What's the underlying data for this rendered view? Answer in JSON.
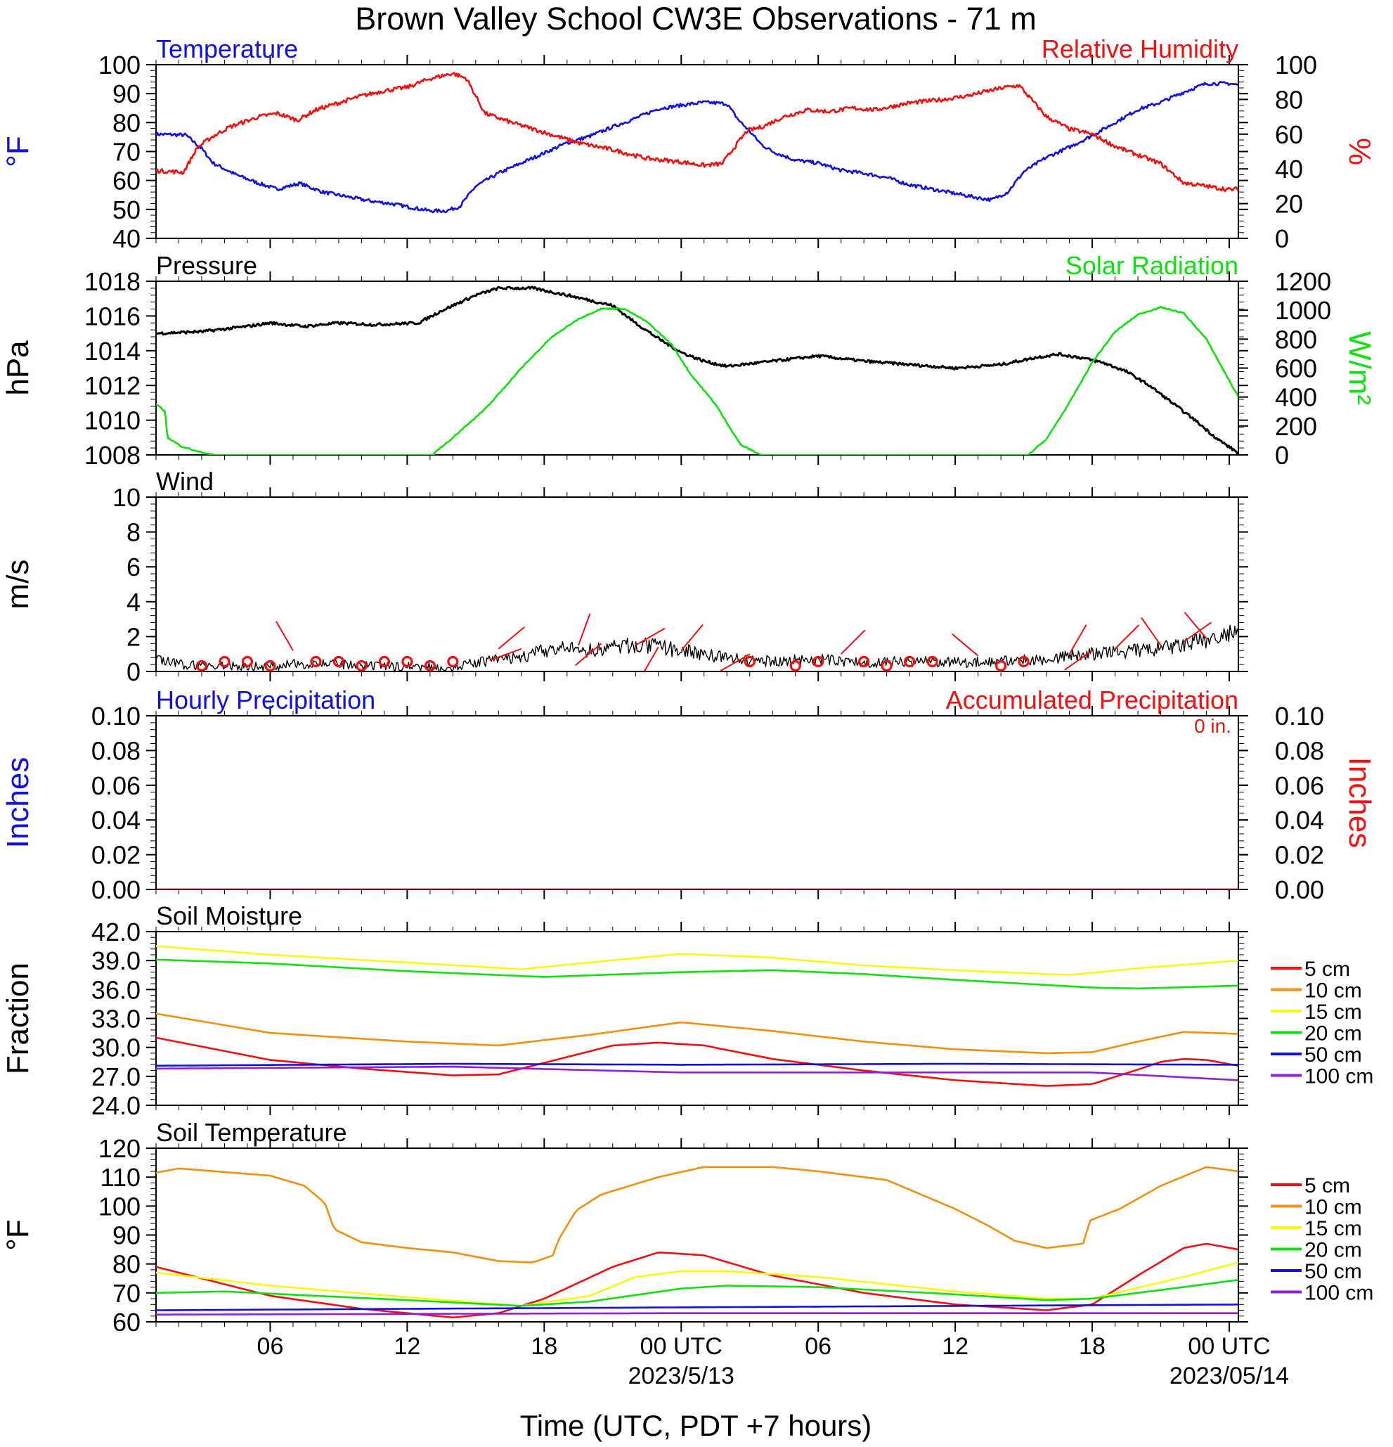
{
  "title": "Brown Valley School CW3E Observations - 71 m",
  "time_axis": {
    "tick_labels": [
      "06",
      "12",
      "18",
      "00 UTC",
      "06",
      "12",
      "18",
      "00 UTC"
    ],
    "tick_hours": [
      6,
      12,
      18,
      24,
      30,
      36,
      42,
      48
    ],
    "dates": [
      {
        "text": "2023/5/13",
        "hour": 24
      },
      {
        "text": "2023/05/14",
        "hour": 48
      }
    ],
    "range_hours": [
      1,
      48.4
    ],
    "label": "Time (UTC, PDT +7 hours)"
  },
  "colors": {
    "temperature": "#1010e0",
    "humidity": "#f01010",
    "pressure": "#000000",
    "solar": "#10e010",
    "wind": "#000000",
    "barb": "#f01010",
    "hourly_precip": "#1010e0",
    "accum_precip": "#f01010"
  },
  "chart_data": [
    {
      "type": "line",
      "title_left": "Temperature",
      "title_right": "Relative Humidity",
      "ylabel_left": "°F",
      "ylabel_right": "%",
      "ylim_left": [
        40,
        100
      ],
      "ylim_right": [
        0,
        100
      ],
      "yticks_left": [
        "40",
        "50",
        "60",
        "70",
        "80",
        "90",
        "100"
      ],
      "yticks_right": [
        "0",
        "20",
        "40",
        "60",
        "80",
        "100"
      ],
      "series": [
        {
          "name": "Temperature",
          "axis": "left",
          "x": [
            1,
            2.3,
            3,
            3.5,
            4.5,
            5.5,
            6.3,
            7.3,
            8.3,
            9.3,
            10.3,
            11.3,
            12.3,
            13,
            13.7,
            14.3,
            15,
            16,
            17,
            18,
            19,
            20,
            21,
            22,
            23,
            24,
            25,
            26,
            26.5,
            27,
            27.5,
            28,
            29,
            30,
            31,
            32,
            33,
            34,
            35,
            36,
            37,
            37.6,
            38.3,
            39,
            40,
            41,
            42,
            43,
            44,
            45,
            46,
            47,
            48,
            48.4
          ],
          "y": [
            76,
            75.7,
            71,
            66,
            62,
            59,
            57,
            59,
            56,
            54.5,
            53,
            52,
            50.5,
            49.5,
            49.5,
            51,
            58,
            62.5,
            66,
            69.5,
            73,
            75.3,
            78.5,
            81.5,
            84.8,
            86,
            87,
            86.5,
            81,
            77,
            72.5,
            70,
            67,
            66,
            63.5,
            62.5,
            61,
            58.5,
            57,
            55.5,
            54,
            53.3,
            56,
            63,
            68,
            71.5,
            75.5,
            80,
            84.5,
            87,
            90.5,
            93.5,
            93.5,
            93
          ]
        },
        {
          "name": "Relative Humidity",
          "axis": "right",
          "x": [
            1,
            2.2,
            2.8,
            3.4,
            4.2,
            5.5,
            6.3,
            7.2,
            8,
            9,
            10,
            11,
            12,
            13,
            14,
            14.6,
            15.4,
            16.5,
            17.5,
            18.5,
            19.5,
            21,
            22.5,
            24,
            25,
            25.8,
            26.3,
            26.9,
            27.5,
            28.5,
            29.5,
            30.5,
            31.5,
            32.5,
            34,
            35.5,
            36.5,
            37.5,
            38.2,
            38.8,
            40,
            41,
            42,
            43,
            44,
            45,
            46,
            47,
            48,
            48.4
          ],
          "y": [
            39,
            38,
            52,
            58,
            64,
            70,
            72,
            68,
            74,
            78,
            82,
            85,
            87,
            92,
            95,
            92,
            72,
            67,
            63,
            59,
            55,
            51,
            46,
            44,
            42,
            43,
            52,
            62,
            64,
            70,
            74,
            73,
            75,
            74,
            78,
            80,
            82,
            85,
            87,
            88,
            70,
            63,
            60,
            53,
            48,
            43,
            32,
            30,
            28,
            28.5
          ]
        }
      ]
    },
    {
      "type": "line",
      "title_left": "Pressure",
      "title_right": "Solar Radiation",
      "ylabel_left": "hPa",
      "ylabel_right": "W/m²",
      "ylim_left": [
        1008,
        1018
      ],
      "ylim_right": [
        0,
        1200
      ],
      "yticks_left": [
        "1008",
        "1010",
        "1012",
        "1014",
        "1016",
        "1018"
      ],
      "yticks_right": [
        "0",
        "200",
        "400",
        "600",
        "800",
        "1000",
        "1200"
      ],
      "series": [
        {
          "name": "Pressure",
          "axis": "left",
          "x": [
            1,
            3,
            5,
            6,
            7.5,
            9,
            10.5,
            12.5,
            13.5,
            15,
            16,
            17.5,
            19,
            21,
            22,
            23,
            24,
            25,
            26,
            28,
            30,
            32,
            34,
            36,
            38,
            39.5,
            40.5,
            41.5,
            42.5,
            43.5,
            44.5,
            45.5,
            46.5,
            47.5,
            48.4
          ],
          "y": [
            1015,
            1015.1,
            1015.4,
            1015.6,
            1015.4,
            1015.6,
            1015.5,
            1015.6,
            1016.3,
            1017.2,
            1017.6,
            1017.6,
            1017.2,
            1016.6,
            1015.6,
            1014.7,
            1013.9,
            1013.4,
            1013.1,
            1013.4,
            1013.7,
            1013.4,
            1013.2,
            1013.0,
            1013.2,
            1013.6,
            1013.8,
            1013.6,
            1013.3,
            1012.8,
            1012.0,
            1011.0,
            1010.0,
            1008.9,
            1008.1
          ]
        },
        {
          "name": "Solar Radiation",
          "axis": "right",
          "x": [
            1,
            1.4,
            1.5,
            2.1,
            2.9,
            3.6,
            13.1,
            14,
            15.5,
            17,
            18.3,
            19.5,
            20.5,
            21.5,
            22.5,
            23.6,
            24.4,
            25.5,
            26.6,
            27.5,
            30,
            34,
            38,
            39.2,
            40,
            41,
            42,
            43,
            44,
            45,
            46,
            47,
            48.4
          ],
          "y": [
            350,
            300,
            120,
            60,
            20,
            0,
            0,
            120,
            330,
            600,
            810,
            940,
            1010,
            1010,
            920,
            760,
            560,
            350,
            70,
            0,
            0,
            0,
            0,
            0,
            110,
            360,
            640,
            850,
            970,
            1020,
            980,
            800,
            400
          ]
        }
      ]
    },
    {
      "type": "line",
      "title_left": "Wind",
      "ylabel_left": "m/s",
      "ylim_left": [
        0,
        10
      ],
      "yticks_left": [
        "0",
        "2",
        "4",
        "6",
        "8",
        "10"
      ],
      "series": [
        {
          "name": "Wind",
          "axis": "left",
          "x": [
            1,
            2,
            4,
            6,
            8,
            10,
            12,
            14,
            15,
            16,
            17,
            18,
            19,
            20,
            21,
            22,
            23,
            24,
            25,
            26,
            27,
            28,
            30,
            32,
            34,
            36,
            38,
            40,
            41,
            42,
            43,
            44,
            45,
            46,
            47,
            48,
            48.4
          ],
          "y": [
            0.7,
            0.4,
            0.3,
            0.3,
            0.5,
            0.3,
            0.3,
            0.2,
            0.5,
            0.7,
            0.8,
            1.2,
            1.3,
            1.2,
            1.4,
            1.5,
            1.4,
            1.2,
            1.0,
            0.8,
            0.6,
            0.6,
            0.7,
            0.5,
            0.6,
            0.5,
            0.6,
            0.7,
            0.9,
            1.0,
            1.1,
            1.2,
            1.3,
            1.5,
            1.8,
            2.1,
            2.2
          ]
        }
      ],
      "calm_markers_hours": [
        3,
        4,
        5,
        6,
        8,
        9,
        10,
        11,
        12,
        13,
        14,
        27,
        29,
        30,
        32,
        33,
        34,
        35,
        38,
        39
      ],
      "barbs": [
        {
          "hour": 7,
          "speed": 1.2
        },
        {
          "hour": 16,
          "speed": 1.3
        },
        {
          "hour": 17,
          "speed": 1.3
        },
        {
          "hour": 19.5,
          "speed": 1.5
        },
        {
          "hour": 20.5,
          "speed": 1.6
        },
        {
          "hour": 22,
          "speed": 1.5
        },
        {
          "hour": 23,
          "speed": 1.4
        },
        {
          "hour": 24,
          "speed": 1.2
        },
        {
          "hour": 27,
          "speed": 1.0
        },
        {
          "hour": 31,
          "speed": 1.0
        },
        {
          "hour": 37,
          "speed": 0.9
        },
        {
          "hour": 41,
          "speed": 1.0
        },
        {
          "hour": 42,
          "speed": 1.2
        },
        {
          "hour": 43,
          "speed": 1.3
        },
        {
          "hour": 45,
          "speed": 1.5
        },
        {
          "hour": 46,
          "speed": 1.7
        },
        {
          "hour": 47,
          "speed": 1.9
        }
      ]
    },
    {
      "type": "line",
      "title_left": "Hourly Precipitation",
      "title_right": "Accumulated Precipitation",
      "annotation": "0 in.",
      "ylabel_left": "Inches",
      "ylabel_right": "Inches",
      "ylim_left": [
        0,
        0.1
      ],
      "ylim_right": [
        0,
        0.1
      ],
      "yticks_left": [
        "0.00",
        "0.02",
        "0.04",
        "0.06",
        "0.08",
        "0.10"
      ],
      "yticks_right": [
        "0.00",
        "0.02",
        "0.04",
        "0.06",
        "0.08",
        "0.10"
      ],
      "series": [
        {
          "name": "Hourly Precipitation",
          "axis": "left",
          "x": [
            1,
            48.4
          ],
          "y": [
            0,
            0
          ]
        },
        {
          "name": "Accumulated Precipitation",
          "axis": "right",
          "x": [
            1,
            48.4
          ],
          "y": [
            0,
            0
          ]
        }
      ]
    },
    {
      "type": "line",
      "title_left": "Soil Moisture",
      "ylabel_left": "Fraction",
      "ylim_left": [
        24,
        42
      ],
      "yticks_left": [
        "24.0",
        "27.0",
        "30.0",
        "33.0",
        "36.0",
        "39.0",
        "42.0"
      ],
      "legend_position": "right",
      "series": [
        {
          "name": "5 cm",
          "color": "#f01010",
          "x": [
            1,
            6,
            10,
            14,
            16,
            18,
            21,
            23,
            25,
            28,
            32,
            36,
            40,
            42,
            44,
            45,
            46,
            47,
            48.4
          ],
          "y": [
            31,
            28.7,
            27.8,
            27.1,
            27.2,
            28.4,
            30.2,
            30.5,
            30.2,
            28.8,
            27.6,
            26.6,
            26.0,
            26.2,
            27.7,
            28.5,
            28.8,
            28.7,
            28.1
          ]
        },
        {
          "name": "10 cm",
          "color": "#f09010",
          "x": [
            1,
            6,
            12,
            16,
            20,
            24,
            28,
            32,
            36,
            40,
            42,
            44,
            46,
            48.4
          ],
          "y": [
            33.5,
            31.5,
            30.6,
            30.2,
            31.3,
            32.6,
            31.7,
            30.6,
            29.8,
            29.4,
            29.5,
            30.6,
            31.6,
            31.4
          ]
        },
        {
          "name": "15 cm",
          "color": "#f8f810",
          "x": [
            1,
            6,
            12,
            17,
            20,
            24,
            28,
            32,
            36,
            41,
            44,
            48.4
          ],
          "y": [
            40.5,
            39.6,
            38.8,
            38.1,
            38.8,
            39.7,
            39.3,
            38.5,
            38.0,
            37.5,
            38.2,
            39.0
          ]
        },
        {
          "name": "20 cm",
          "color": "#10e010",
          "x": [
            1,
            6,
            12,
            18,
            24,
            28,
            32,
            36,
            42,
            44,
            48.4
          ],
          "y": [
            39.1,
            38.7,
            37.9,
            37.3,
            37.8,
            38.0,
            37.6,
            37.0,
            36.2,
            36.1,
            36.4
          ]
        },
        {
          "name": "50 cm",
          "color": "#1010e0",
          "x": [
            1,
            14,
            24,
            36,
            48.4
          ],
          "y": [
            28.1,
            28.3,
            28.2,
            28.3,
            28.2
          ]
        },
        {
          "name": "100 cm",
          "color": "#9020d0",
          "x": [
            1,
            14,
            24,
            36,
            42,
            48.4
          ],
          "y": [
            27.8,
            28.0,
            27.4,
            27.4,
            27.4,
            26.6
          ]
        }
      ]
    },
    {
      "type": "line",
      "title_left": "Soil Temperature",
      "ylabel_left": "°F",
      "ylim_left": [
        60,
        120
      ],
      "yticks_left": [
        "60",
        "70",
        "80",
        "90",
        "100",
        "110",
        "120"
      ],
      "legend_position": "right",
      "series": [
        {
          "name": "5 cm",
          "color": "#f01010",
          "x": [
            1,
            6,
            10,
            14,
            16,
            18,
            21,
            23,
            25,
            28,
            32,
            36,
            40,
            42,
            44,
            46,
            47,
            48.4
          ],
          "y": [
            79,
            69,
            64.5,
            61.5,
            63,
            68,
            79,
            84,
            83,
            76,
            70,
            66,
            64,
            66,
            76,
            85.5,
            87,
            85
          ]
        },
        {
          "name": "10 cm",
          "color": "#f09010",
          "x": [
            1,
            2,
            6,
            7.5,
            8.4,
            8.8,
            10,
            12,
            14,
            16,
            17.5,
            18.4,
            18.6,
            19.4,
            20.5,
            23,
            25,
            28,
            30,
            33,
            36,
            37.5,
            38.6,
            40,
            41.6,
            41.9,
            43.2,
            45,
            47,
            48.4
          ],
          "y": [
            111.5,
            113,
            110.5,
            107,
            101,
            92,
            87.5,
            85.5,
            84,
            81,
            80.5,
            83,
            88,
            98.5,
            104,
            110,
            113.5,
            113.5,
            112,
            109,
            99,
            93,
            88,
            85.5,
            87,
            95,
            99,
            107,
            113.5,
            112
          ]
        },
        {
          "name": "15 cm",
          "color": "#f8f810",
          "x": [
            1,
            6,
            12,
            17,
            20,
            22,
            24,
            26,
            30,
            36,
            40,
            42,
            46,
            48.4
          ],
          "y": [
            77,
            72.5,
            68.5,
            65.5,
            69,
            75.5,
            77.5,
            77.5,
            75.5,
            70.5,
            68,
            68,
            75.5,
            80.5
          ]
        },
        {
          "name": "20 cm",
          "color": "#10e010",
          "x": [
            1,
            4,
            8,
            12,
            17,
            20,
            24,
            26,
            30,
            36,
            40,
            42,
            46,
            48.4
          ],
          "y": [
            70,
            70.5,
            69,
            67.5,
            65.5,
            67,
            71.5,
            72.5,
            72,
            69.5,
            67.5,
            68,
            72,
            74.5
          ]
        },
        {
          "name": "50 cm",
          "color": "#1010e0",
          "x": [
            1,
            12,
            24,
            36,
            48.4
          ],
          "y": [
            64,
            64.5,
            65,
            65.5,
            66
          ]
        },
        {
          "name": "100 cm",
          "color": "#9020d0",
          "x": [
            1,
            24,
            48.4
          ],
          "y": [
            62.5,
            63,
            63
          ]
        }
      ]
    }
  ]
}
